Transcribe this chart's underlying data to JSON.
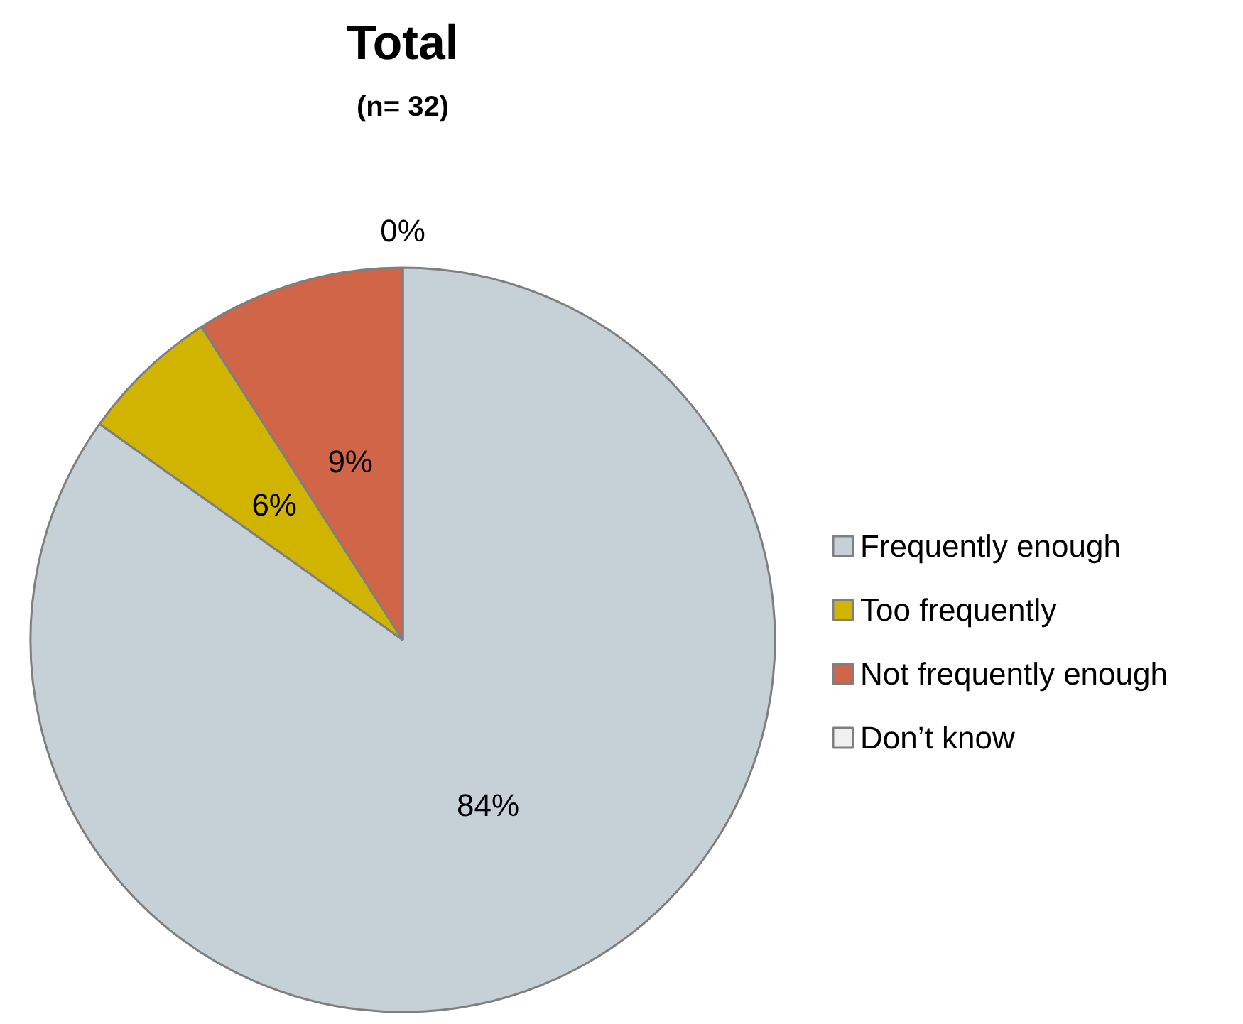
{
  "chart_data": {
    "type": "pie",
    "title": "Total",
    "subtitle": "(n= 32)",
    "categories": [
      "Frequently enough",
      "Too frequently",
      "Not frequently enough",
      "Don’t know"
    ],
    "values": [
      84,
      6,
      9,
      0
    ],
    "colors": [
      "#c5d0d7",
      "#d0b400",
      "#d06548",
      "#f0f0f0"
    ],
    "value_labels": [
      "84%",
      "6%",
      "9%",
      "0%"
    ],
    "legend": "right"
  }
}
